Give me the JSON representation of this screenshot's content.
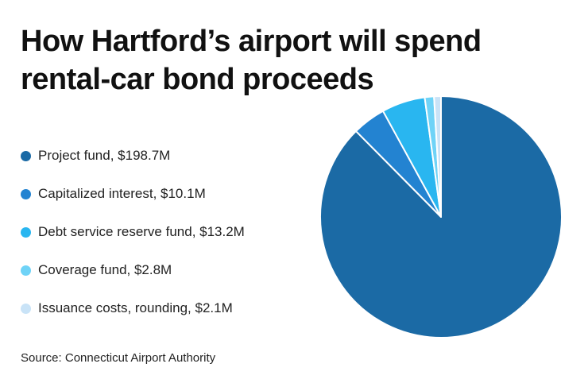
{
  "title": "How Hartford’s airport will spend rental-car bond proceeds",
  "source": "Source: Connecticut Airport Authority",
  "chart_data": {
    "type": "pie",
    "title": "How Hartford’s airport will spend rental-car bond proceeds",
    "units": "$M",
    "legend_position": "left",
    "slices": [
      {
        "label": "Project fund, $198.7M",
        "value": 198.7,
        "color": "#1b6aa5"
      },
      {
        "label": "Capitalized interest, $10.1M",
        "value": 10.1,
        "color": "#2383d1"
      },
      {
        "label": "Debt service reserve fund, $13.2M",
        "value": 13.2,
        "color": "#29b6f0"
      },
      {
        "label": "Coverage fund, $2.8M",
        "value": 2.8,
        "color": "#6fd3f7"
      },
      {
        "label": "Issuance costs, rounding, $2.1M",
        "value": 2.1,
        "color": "#c9e3f7"
      }
    ]
  }
}
